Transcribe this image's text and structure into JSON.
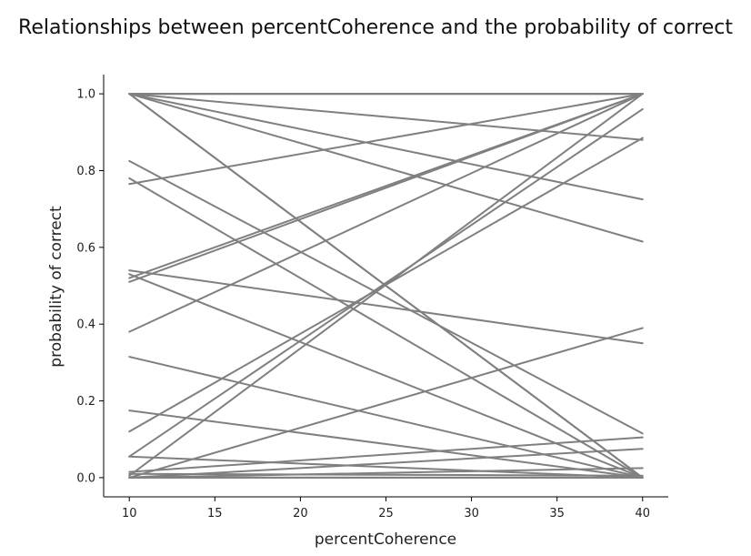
{
  "chart_data": {
    "type": "line",
    "title": "Relationships between percentCoherence and the probability of correct",
    "xlabel": "percentCoherence",
    "ylabel": "probability of correct",
    "x": [
      10,
      40
    ],
    "xlim": [
      8.5,
      41.5
    ],
    "ylim": [
      -0.05,
      1.05
    ],
    "xticks": [
      "10",
      "15",
      "20",
      "25",
      "30",
      "35",
      "40"
    ],
    "yticks": [
      "0.0",
      "0.2",
      "0.4",
      "0.6",
      "0.8",
      "1.0"
    ],
    "grid": false,
    "line_color": "#808080",
    "series": [
      {
        "values": [
          1.0,
          1.0
        ]
      },
      {
        "values": [
          1.0,
          1.0
        ]
      },
      {
        "values": [
          1.0,
          1.0
        ]
      },
      {
        "values": [
          1.0,
          0.88
        ]
      },
      {
        "values": [
          1.0,
          0.725
        ]
      },
      {
        "values": [
          1.0,
          0.615
        ]
      },
      {
        "values": [
          1.0,
          0.0
        ]
      },
      {
        "values": [
          1.0,
          0.0
        ]
      },
      {
        "values": [
          0.765,
          1.0
        ]
      },
      {
        "values": [
          0.52,
          1.0
        ]
      },
      {
        "values": [
          0.51,
          1.0
        ]
      },
      {
        "values": [
          0.38,
          1.0
        ]
      },
      {
        "values": [
          0.12,
          0.885
        ]
      },
      {
        "values": [
          0.055,
          0.96
        ]
      },
      {
        "values": [
          0.005,
          1.0
        ]
      },
      {
        "values": [
          0.825,
          0.115
        ]
      },
      {
        "values": [
          0.78,
          0.0
        ]
      },
      {
        "values": [
          0.54,
          0.35
        ]
      },
      {
        "values": [
          0.53,
          0.0
        ]
      },
      {
        "values": [
          0.315,
          0.0
        ]
      },
      {
        "values": [
          0.175,
          0.0
        ]
      },
      {
        "values": [
          0.0,
          0.39
        ]
      },
      {
        "values": [
          0.055,
          0.0
        ]
      },
      {
        "values": [
          0.015,
          0.105
        ]
      },
      {
        "values": [
          0.0,
          0.075
        ]
      },
      {
        "values": [
          0.0,
          0.025
        ]
      },
      {
        "values": [
          0.01,
          0.005
        ]
      },
      {
        "values": [
          0.0,
          0.0
        ]
      },
      {
        "values": [
          0.0,
          0.0
        ]
      }
    ]
  }
}
